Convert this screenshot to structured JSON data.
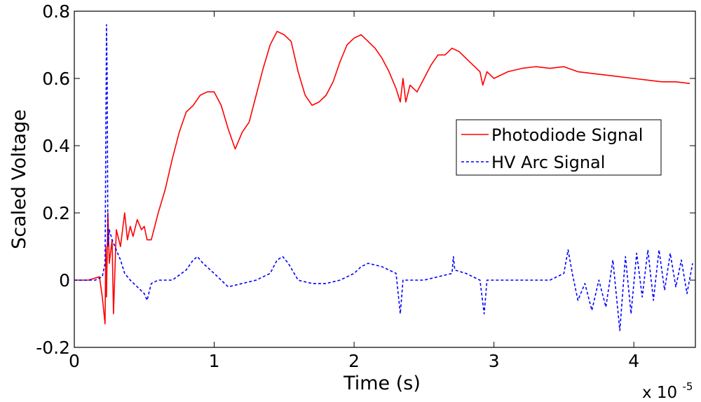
{
  "chart_data": {
    "type": "line",
    "title": "",
    "xlabel": "Time (s)",
    "ylabel": "Scaled Voltage",
    "x_multiplier_label": "x 10",
    "x_multiplier_exponent": "-5",
    "xlim": [
      0,
      4.44
    ],
    "ylim": [
      -0.2,
      0.8
    ],
    "xticks": [
      0,
      1,
      2,
      3,
      4
    ],
    "xtick_labels": [
      "0",
      "1",
      "2",
      "3",
      "4"
    ],
    "yticks": [
      -0.2,
      0,
      0.2,
      0.4,
      0.6,
      0.8
    ],
    "ytick_labels": [
      "-0.2",
      "0",
      "0.2",
      "0.4",
      "0.6",
      "0.8"
    ],
    "grid": false,
    "legend_position": "right",
    "series": [
      {
        "name": "Photodiode Signal",
        "color": "#ff0000",
        "style": "solid",
        "x": [
          0,
          0.1,
          0.18,
          0.2,
          0.22,
          0.225,
          0.23,
          0.24,
          0.25,
          0.27,
          0.28,
          0.3,
          0.33,
          0.36,
          0.38,
          0.4,
          0.42,
          0.45,
          0.48,
          0.5,
          0.52,
          0.55,
          0.6,
          0.65,
          0.7,
          0.75,
          0.8,
          0.85,
          0.9,
          0.95,
          1.0,
          1.05,
          1.1,
          1.15,
          1.2,
          1.25,
          1.3,
          1.35,
          1.4,
          1.45,
          1.5,
          1.55,
          1.6,
          1.65,
          1.7,
          1.75,
          1.8,
          1.85,
          1.9,
          1.95,
          2.0,
          2.05,
          2.1,
          2.15,
          2.2,
          2.25,
          2.3,
          2.33,
          2.35,
          2.37,
          2.4,
          2.45,
          2.5,
          2.55,
          2.6,
          2.65,
          2.7,
          2.75,
          2.8,
          2.85,
          2.9,
          2.92,
          2.95,
          3.0,
          3.1,
          3.2,
          3.3,
          3.4,
          3.5,
          3.6,
          3.7,
          3.8,
          3.9,
          4.0,
          4.1,
          4.2,
          4.3,
          4.4
        ],
        "y": [
          0,
          0,
          0.01,
          -0.05,
          -0.13,
          0.1,
          -0.05,
          0.2,
          0.05,
          0.12,
          -0.1,
          0.15,
          0.1,
          0.2,
          0.12,
          0.16,
          0.13,
          0.18,
          0.15,
          0.16,
          0.12,
          0.12,
          0.2,
          0.27,
          0.36,
          0.44,
          0.5,
          0.52,
          0.55,
          0.56,
          0.56,
          0.52,
          0.45,
          0.39,
          0.44,
          0.47,
          0.55,
          0.63,
          0.7,
          0.74,
          0.73,
          0.71,
          0.62,
          0.55,
          0.52,
          0.53,
          0.55,
          0.59,
          0.65,
          0.7,
          0.72,
          0.73,
          0.71,
          0.69,
          0.66,
          0.62,
          0.57,
          0.53,
          0.6,
          0.53,
          0.58,
          0.56,
          0.6,
          0.64,
          0.67,
          0.67,
          0.69,
          0.68,
          0.66,
          0.64,
          0.62,
          0.58,
          0.62,
          0.6,
          0.62,
          0.63,
          0.635,
          0.63,
          0.635,
          0.62,
          0.615,
          0.61,
          0.605,
          0.6,
          0.595,
          0.59,
          0.59,
          0.585
        ]
      },
      {
        "name": "HV Arc Signal",
        "color": "#0000ff",
        "style": "dashed",
        "x": [
          0,
          0.15,
          0.2,
          0.22,
          0.23,
          0.235,
          0.24,
          0.25,
          0.27,
          0.29,
          0.31,
          0.33,
          0.36,
          0.4,
          0.45,
          0.5,
          0.52,
          0.55,
          0.6,
          0.7,
          0.8,
          0.85,
          0.88,
          0.92,
          1.0,
          1.05,
          1.1,
          1.2,
          1.3,
          1.4,
          1.45,
          1.49,
          1.53,
          1.6,
          1.7,
          1.8,
          1.9,
          2.0,
          2.05,
          2.1,
          2.2,
          2.3,
          2.33,
          2.35,
          2.4,
          2.5,
          2.6,
          2.7,
          2.71,
          2.72,
          2.8,
          2.9,
          2.93,
          2.95,
          3.0,
          3.1,
          3.2,
          3.3,
          3.4,
          3.5,
          3.53,
          3.56,
          3.6,
          3.65,
          3.7,
          3.75,
          3.8,
          3.85,
          3.9,
          3.94,
          3.98,
          4.02,
          4.06,
          4.1,
          4.14,
          4.18,
          4.22,
          4.26,
          4.3,
          4.34,
          4.38,
          4.42
        ],
        "y": [
          0,
          0,
          0.01,
          0.05,
          0.76,
          0.6,
          0.1,
          0.15,
          0.12,
          0.1,
          0.08,
          0.06,
          0.02,
          0.0,
          -0.02,
          -0.04,
          -0.06,
          -0.01,
          0.0,
          0.0,
          0.03,
          0.06,
          0.07,
          0.05,
          0.02,
          0.0,
          -0.02,
          -0.01,
          0.0,
          0.02,
          0.06,
          0.07,
          0.05,
          0.0,
          -0.01,
          -0.01,
          0.0,
          0.02,
          0.04,
          0.05,
          0.04,
          0.02,
          -0.1,
          0.0,
          0.0,
          0.0,
          0.01,
          0.02,
          0.07,
          0.03,
          0.02,
          0.0,
          -0.1,
          0.0,
          0.0,
          0.0,
          0.0,
          0.0,
          0.0,
          0.02,
          0.09,
          0.02,
          -0.06,
          -0.01,
          -0.09,
          0.0,
          -0.08,
          0.06,
          -0.15,
          0.07,
          -0.1,
          0.08,
          -0.05,
          0.09,
          -0.06,
          0.09,
          -0.03,
          0.08,
          -0.02,
          0.06,
          -0.04,
          0.05
        ]
      }
    ]
  }
}
